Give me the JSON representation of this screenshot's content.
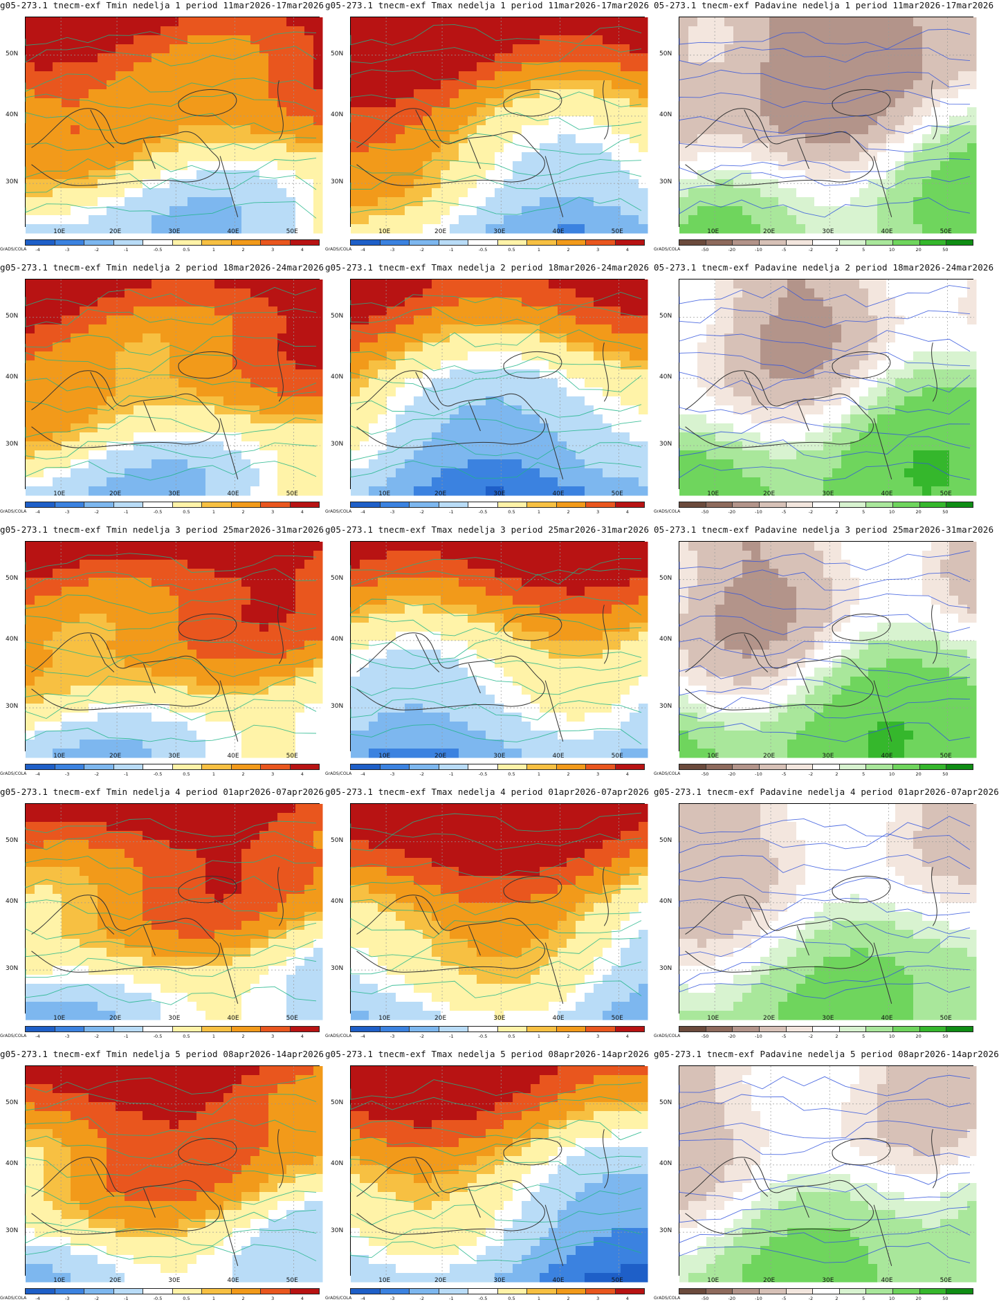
{
  "credit": "GrADS/COLA",
  "lat_labels": [
    "50N",
    "40N",
    "30N"
  ],
  "lon_labels": [
    "10E",
    "20E",
    "30E",
    "40E",
    "50E"
  ],
  "colors": {
    "temp": [
      "#1e5fc8",
      "#3b82e0",
      "#7db7ef",
      "#b9dcf7",
      "#ffffff",
      "#fff3a8",
      "#f7c042",
      "#f29a1a",
      "#e9561e",
      "#b81313"
    ],
    "precip": [
      "#6b4a3c",
      "#8e6a5c",
      "#b3948a",
      "#d7c1b7",
      "#f3e6de",
      "#ffffff",
      "#d8f3d0",
      "#a9e79b",
      "#6fd55d",
      "#35b72c",
      "#0f8d14"
    ]
  },
  "colorbars": {
    "temp": [
      "-4",
      "-3",
      "-2",
      "-1",
      "-0.5",
      "0.5",
      "1",
      "2",
      "3",
      "4"
    ],
    "precip": [
      "-50",
      "-20",
      "-10",
      "-5",
      "-2",
      "2",
      "5",
      "10",
      "20",
      "50"
    ]
  },
  "panels": [
    {
      "title": "g05-273.1 tnecm-exf Tmin nedelja 1 period 11mar2026-17mar2026",
      "var": "Tmin",
      "week": 1
    },
    {
      "title": "g05-273.1 tnecm-exf Tmax nedelja 1 period 11mar2026-17mar2026",
      "var": "Tmax",
      "week": 1
    },
    {
      "title": "05-273.1 tnecm-exf Padavine nedelja 1 period 11mar2026-17mar2026",
      "var": "Padavine",
      "week": 1
    },
    {
      "title": "g05-273.1 tnecm-exf Tmin nedelja 2 period 18mar2026-24mar2026",
      "var": "Tmin",
      "week": 2
    },
    {
      "title": "g05-273.1 tnecm-exf Tmax nedelja 2 period 18mar2026-24mar2026",
      "var": "Tmax",
      "week": 2
    },
    {
      "title": "05-273.1 tnecm-exf Padavine nedelja 2 period 18mar2026-24mar2026",
      "var": "Padavine",
      "week": 2
    },
    {
      "title": "g05-273.1 tnecm-exf Tmin nedelja 3 period 25mar2026-31mar2026",
      "var": "Tmin",
      "week": 3
    },
    {
      "title": "g05-273.1 tnecm-exf Tmax nedelja 3 period 25mar2026-31mar2026",
      "var": "Tmax",
      "week": 3
    },
    {
      "title": "05-273.1 tnecm-exf Padavine nedelja 3 period 25mar2026-31mar2026",
      "var": "Padavine",
      "week": 3
    },
    {
      "title": "g05-273.1 tnecm-exf Tmin nedelja 4 period 01apr2026-07apr2026",
      "var": "Tmin",
      "week": 4
    },
    {
      "title": "g05-273.1 tnecm-exf Tmax nedelja 4 period 01apr2026-07apr2026",
      "var": "Tmax",
      "week": 4
    },
    {
      "title": "g05-273.1 tnecm-exf Padavine nedelja 4 period 01apr2026-07apr2026",
      "var": "Padavine",
      "week": 4
    },
    {
      "title": "g05-273.1 tnecm-exf Tmin nedelja 5 period 08apr2026-14apr2026",
      "var": "Tmin",
      "week": 5
    },
    {
      "title": "g05-273.1 tnecm-exf Tmax nedelja 5 period 08apr2026-14apr2026",
      "var": "Tmax",
      "week": 5
    },
    {
      "title": "g05-273.1 tnecm-exf Padavine nedelja 5 period 08apr2026-14apr2026",
      "var": "Padavine",
      "week": 5
    }
  ]
}
